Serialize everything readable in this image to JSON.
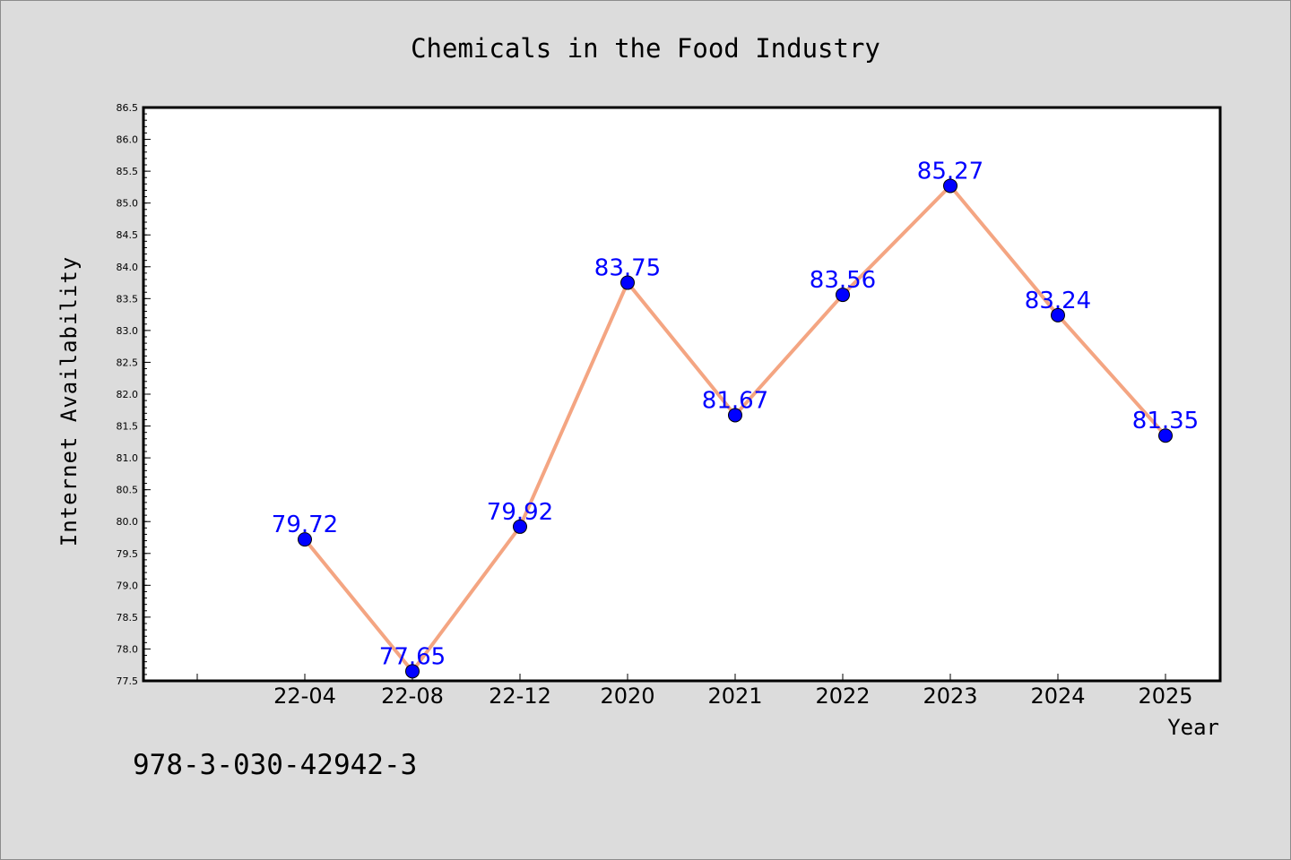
{
  "chart_data": {
    "type": "line",
    "title": "Chemicals in the Food Industry",
    "xlabel": "Year",
    "ylabel": "Internet Availability",
    "categories": [
      "22-04",
      "22-08",
      "22-12",
      "2020",
      "2021",
      "2022",
      "2023",
      "2024",
      "2025"
    ],
    "values": [
      79.72,
      77.65,
      79.92,
      83.75,
      81.67,
      83.56,
      85.27,
      83.24,
      81.35
    ],
    "data_labels": [
      "79.72",
      "77.65",
      "79.92",
      "83.75",
      "81.67",
      "83.56",
      "85.27",
      "83.24",
      "81.35"
    ],
    "ylim": [
      77.5,
      86.5
    ],
    "yticks": [
      "77.5",
      "78.0",
      "78.5",
      "79.0",
      "79.5",
      "80.0",
      "80.5",
      "81.0",
      "81.5",
      "82.0",
      "82.5",
      "83.0",
      "83.5",
      "84.0",
      "84.5",
      "85.0",
      "85.5",
      "86.0",
      "86.5"
    ],
    "grid": false,
    "line_color": "#f4a582",
    "marker_color": "#0000ff"
  },
  "annotation": "978-3-030-42942-3"
}
